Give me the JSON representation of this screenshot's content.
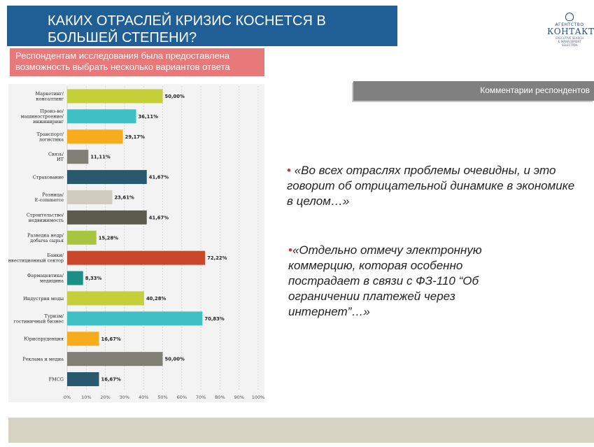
{
  "header": {
    "title": "КАКИХ ОТРАСЛЕЙ КРИЗИС КОСНЕТСЯ В БОЛЬШЕЙ СТЕПЕНИ?"
  },
  "logo": {
    "top": "АГЕНТСТВО",
    "name": "КОНТАКТ",
    "sub1": "EXECUTIVE SEARCH",
    "sub2": "& MANAGEMENT",
    "sub3": "SELECTION"
  },
  "note": {
    "text": "Респондентам исследования была предоставлена возможность выбрать несколько вариантов ответа"
  },
  "comments": {
    "header": "Комментарии респондентов",
    "bullet": "•",
    "items": [
      "«Во всех отраслях проблемы очевидны, и это говорит об отрицательной динамике в экономике в целом…»",
      "«Отдельно отмечу электронную коммерцию, которая особенно пострадает в связи с ФЗ-110 “Об ограничении платежей через интернет”…»"
    ]
  },
  "chart_data": {
    "type": "bar",
    "orientation": "horizontal",
    "categories": [
      [
        "Маркетинг/",
        "консалтинг"
      ],
      [
        "Произ-во/",
        "машиностроение/",
        "инжиниринг"
      ],
      [
        "Транспорт/",
        "логистика"
      ],
      [
        "Связь/",
        "ИТ"
      ],
      [
        "Страхование"
      ],
      [
        "Розница/",
        "E-commerce"
      ],
      [
        "Строительство/",
        "недвижимость"
      ],
      [
        "Разведка недр/",
        "добыча сырья"
      ],
      [
        "Банки/",
        "инвестиционный сектор"
      ],
      [
        "Фармацевтика/",
        "медицина"
      ],
      [
        "Индустрия моды"
      ],
      [
        "Туризм/",
        "гостиничный бизнес"
      ],
      [
        "Юриспруденция"
      ],
      [
        "Реклама и медиа"
      ],
      [
        "FMCG"
      ]
    ],
    "values": [
      50.0,
      36.11,
      29.17,
      11.11,
      41.67,
      23.61,
      41.67,
      15.28,
      72.22,
      8.33,
      40.28,
      70.83,
      16.67,
      50.0,
      16.67
    ],
    "value_labels": [
      "50,00%",
      "36,11%",
      "29,17%",
      "11,11%",
      "41,67%",
      "23,61%",
      "41,67%",
      "15,28%",
      "72,22%",
      "8,33%",
      "40,28%",
      "70,83%",
      "16,67%",
      "50,00%",
      "16,67%"
    ],
    "colors": [
      "#c5cf3a",
      "#3ec0c4",
      "#f6ac1d",
      "#7f7f76",
      "#28596d",
      "#cfcbbd",
      "#5b5a4c",
      "#a9c53f",
      "#c9482a",
      "#1b8f88",
      "#c5cf3a",
      "#3ec0c4",
      "#f6ac1d",
      "#7f7f76",
      "#28596d"
    ],
    "xlim": [
      0,
      100
    ],
    "xticks": [
      "0%",
      "10%",
      "20%",
      "30%",
      "40%",
      "50%",
      "60%",
      "70%",
      "80%",
      "90%",
      "100%"
    ],
    "grid": "vertical dashed",
    "title": "",
    "xlabel": "",
    "ylabel": ""
  }
}
